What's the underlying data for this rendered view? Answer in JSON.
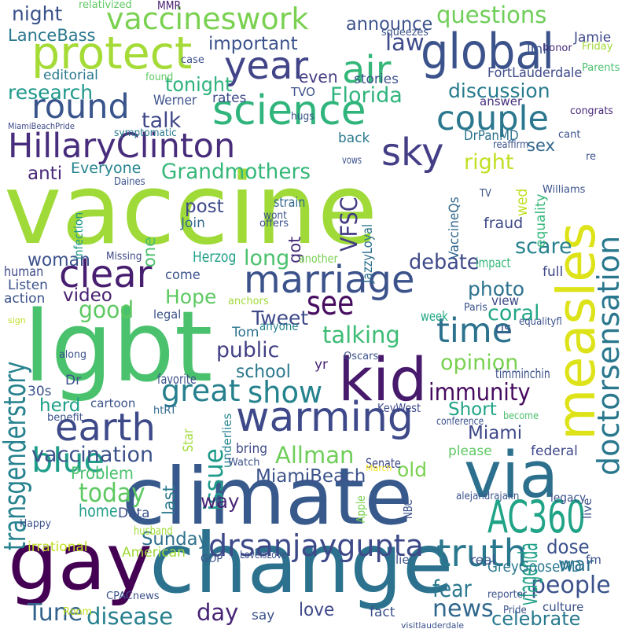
{
  "words": [
    {
      "text": "vaccine",
      "color": "#a0da39"
    },
    {
      "text": "climate",
      "color": "#38598c"
    },
    {
      "text": "lgbt",
      "color": "#4ac16d"
    },
    {
      "text": "change",
      "color": "#2c728e"
    },
    {
      "text": "gay",
      "color": "#440154"
    },
    {
      "text": "measles",
      "color": "#dde318"
    },
    {
      "text": "kid",
      "color": "#481a6c"
    },
    {
      "text": "doctorsensation",
      "color": "#2a788e"
    },
    {
      "text": "via",
      "color": "#2d708e"
    },
    {
      "text": "science",
      "color": "#2fb47c"
    },
    {
      "text": "marriage",
      "color": "#3b528b"
    },
    {
      "text": "warming",
      "color": "#3e4989"
    },
    {
      "text": "global",
      "color": "#3b528b"
    },
    {
      "text": "protect",
      "color": "#a5db36"
    },
    {
      "text": "vaccineswork",
      "color": "#7ad151"
    },
    {
      "text": "HillaryClinton",
      "color": "#472d7b"
    },
    {
      "text": "drsanjaygupta",
      "color": "#3e4a89"
    },
    {
      "text": "AC360",
      "color": "#20a386"
    },
    {
      "text": "truth",
      "color": "#2a788e"
    },
    {
      "text": "year",
      "color": "#414487"
    },
    {
      "text": "air",
      "color": "#35b779"
    },
    {
      "text": "round",
      "color": "#39558c"
    },
    {
      "text": "couple",
      "color": "#2a778e"
    },
    {
      "text": "clear",
      "color": "#481f70"
    },
    {
      "text": "earth",
      "color": "#3e4989"
    },
    {
      "text": "blue",
      "color": "#1f9e89"
    },
    {
      "text": "sky",
      "color": "#433e85"
    },
    {
      "text": "show",
      "color": "#25838e"
    },
    {
      "text": "time",
      "color": "#2c728e"
    },
    {
      "text": "see",
      "color": "#470d60"
    },
    {
      "text": "great",
      "color": "#27808e"
    },
    {
      "text": "today",
      "color": "#5ec962"
    },
    {
      "text": "vaccination",
      "color": "#3b528b"
    },
    {
      "text": "people",
      "color": "#3b528b"
    },
    {
      "text": "transgenderstory",
      "color": "#26828e"
    },
    {
      "text": "Allman",
      "color": "#6ece58"
    },
    {
      "text": "immunity",
      "color": "#460b5e"
    },
    {
      "text": "news",
      "color": "#31688e"
    },
    {
      "text": "disease",
      "color": "#27808e"
    },
    {
      "text": "fear",
      "color": "#2a788e"
    },
    {
      "text": "celebrate",
      "color": "#29798e"
    },
    {
      "text": "Tune",
      "color": "#33638d"
    },
    {
      "text": "day",
      "color": "#482475"
    },
    {
      "text": "vfagenda",
      "color": "#1fa088"
    },
    {
      "text": "issue",
      "color": "#1f9a8a"
    },
    {
      "text": "talking",
      "color": "#3dbc74"
    },
    {
      "text": "opinion",
      "color": "#7ad151"
    },
    {
      "text": "public",
      "color": "#423f85"
    },
    {
      "text": "VFSC",
      "color": "#433d84"
    },
    {
      "text": "good",
      "color": "#5ec962"
    },
    {
      "text": "discussion",
      "color": "#287c8e"
    },
    {
      "text": "questions",
      "color": "#6ece58"
    },
    {
      "text": "law",
      "color": "#3e4a89"
    },
    {
      "text": "Florida",
      "color": "#2fb47c"
    },
    {
      "text": "research",
      "color": "#1f988b"
    },
    {
      "text": "talk",
      "color": "#3f4788"
    },
    {
      "text": "tonight",
      "color": "#2db27d"
    },
    {
      "text": "right",
      "color": "#c2df23"
    },
    {
      "text": "Grandmothers",
      "color": "#35b779"
    },
    {
      "text": "important",
      "color": "#3b528b"
    },
    {
      "text": "LanceBass",
      "color": "#2a788e"
    },
    {
      "text": "night",
      "color": "#3b528b"
    },
    {
      "text": "announce",
      "color": "#3b528b"
    },
    {
      "text": "sex",
      "color": "#31688e"
    },
    {
      "text": "long",
      "color": "#4ac16d"
    },
    {
      "text": "scare",
      "color": "#26828e"
    },
    {
      "text": "debate",
      "color": "#3e4989"
    },
    {
      "text": "photo",
      "color": "#2c728e"
    },
    {
      "text": "coral",
      "color": "#22a785"
    },
    {
      "text": "Hope",
      "color": "#5ec962"
    },
    {
      "text": "Tweet",
      "color": "#3e4a89"
    },
    {
      "text": "school",
      "color": "#2a788e"
    },
    {
      "text": "woman",
      "color": "#3b528b"
    },
    {
      "text": "video",
      "color": "#481f70"
    },
    {
      "text": "post",
      "color": "#3e4a89"
    },
    {
      "text": "one",
      "color": "#4ac16d"
    },
    {
      "text": "got",
      "color": "#472d7b"
    },
    {
      "text": "herd",
      "color": "#1fa088"
    },
    {
      "text": "Short",
      "color": "#20a386"
    },
    {
      "text": "Miami",
      "color": "#3e4989"
    },
    {
      "text": "old",
      "color": "#7ad151"
    },
    {
      "text": "MiamiBeach",
      "color": "#3b528b"
    },
    {
      "text": "Sunday",
      "color": "#2d708e"
    },
    {
      "text": "dose",
      "color": "#3b528b"
    },
    {
      "text": "war",
      "color": "#2d708e"
    },
    {
      "text": "home",
      "color": "#1f9e89"
    },
    {
      "text": "Problem",
      "color": "#4ac16d"
    },
    {
      "text": "way",
      "color": "#482475"
    },
    {
      "text": "last",
      "color": "#29798e"
    },
    {
      "text": "GreyGooseMD",
      "color": "#2a788e"
    },
    {
      "text": "even",
      "color": "#433e85"
    },
    {
      "text": "editorial",
      "color": "#2a788e"
    },
    {
      "text": "stories",
      "color": "#3b528b"
    },
    {
      "text": "FortLauderdale",
      "color": "#3e4989"
    },
    {
      "text": "DrPanMD",
      "color": "#2c728e"
    },
    {
      "text": "Everyone",
      "color": "#25848e"
    },
    {
      "text": "anti",
      "color": "#482878"
    },
    {
      "text": "Werner",
      "color": "#3b528b"
    },
    {
      "text": "rates",
      "color": "#3e4989"
    },
    {
      "text": "TVO",
      "color": "#3b528b"
    },
    {
      "text": "answer",
      "color": "#46307e"
    },
    {
      "text": "MMR",
      "color": "#481f70"
    },
    {
      "text": "relativized",
      "color": "#5ec962"
    },
    {
      "text": "Jamie",
      "color": "#3e4989"
    },
    {
      "text": "link",
      "color": "#3b528b"
    },
    {
      "text": "squeezes",
      "color": "#3b528b"
    },
    {
      "text": "honor",
      "color": "#472d7b"
    },
    {
      "text": "Friday",
      "color": "#a0da39"
    },
    {
      "text": "Parents",
      "color": "#4ac16d"
    },
    {
      "text": "case",
      "color": "#3b528b"
    },
    {
      "text": "found",
      "color": "#5ec962"
    },
    {
      "text": "congrats",
      "color": "#482878"
    },
    {
      "text": "cant",
      "color": "#3b528b"
    },
    {
      "text": "hugs",
      "color": "#3b528b"
    },
    {
      "text": "back",
      "color": "#2a788e"
    },
    {
      "text": "symptomatic",
      "color": "#2a788e"
    },
    {
      "text": "MiamiBeachPride",
      "color": "#3e4989"
    },
    {
      "text": "reaffirm",
      "color": "#3b528b"
    },
    {
      "text": "wed",
      "color": "#c2df23"
    },
    {
      "text": "equality",
      "color": "#35b779"
    },
    {
      "text": "vows",
      "color": "#3b528b"
    },
    {
      "text": "re",
      "color": "#3b528b"
    },
    {
      "text": "Williams",
      "color": "#3b528b"
    },
    {
      "text": "Daines",
      "color": "#3b528b"
    },
    {
      "text": "infection",
      "color": "#1f988b"
    },
    {
      "text": "Join",
      "color": "#31688e"
    },
    {
      "text": "strain",
      "color": "#31688e"
    },
    {
      "text": "wont",
      "color": "#3b528b"
    },
    {
      "text": "offers",
      "color": "#3b528b"
    },
    {
      "text": "JazzyLoyal",
      "color": "#2d708e"
    },
    {
      "text": "VaccineQs",
      "color": "#31688e"
    },
    {
      "text": "fraud",
      "color": "#3e4989"
    },
    {
      "text": "TV",
      "color": "#3b528b"
    },
    {
      "text": "Herzog",
      "color": "#1fa088"
    },
    {
      "text": "Missing",
      "color": "#3e4989"
    },
    {
      "text": "human",
      "color": "#3e4989"
    },
    {
      "text": "come",
      "color": "#3b528b"
    },
    {
      "text": "Listen",
      "color": "#3b528b"
    },
    {
      "text": "action",
      "color": "#3b528b"
    },
    {
      "text": "impact",
      "color": "#35b779"
    },
    {
      "text": "full",
      "color": "#3e4989"
    },
    {
      "text": "view",
      "color": "#3e4989"
    },
    {
      "text": "another",
      "color": "#7ad151"
    },
    {
      "text": "anchors",
      "color": "#a0da39"
    },
    {
      "text": "Tom",
      "color": "#2c728e"
    },
    {
      "text": "legal",
      "color": "#3b528b"
    },
    {
      "text": "sign",
      "color": "#c2df23"
    },
    {
      "text": "anyone",
      "color": "#25848e"
    },
    {
      "text": "week",
      "color": "#22a785"
    },
    {
      "text": "Paris",
      "color": "#3b528b"
    },
    {
      "text": "US",
      "color": "#3b528b"
    },
    {
      "text": "equalityfl",
      "color": "#3b528b"
    },
    {
      "text": "along",
      "color": "#3b528b"
    },
    {
      "text": "Oscars",
      "color": "#3b528b"
    },
    {
      "text": "yr",
      "color": "#482475"
    },
    {
      "text": "timminchin",
      "color": "#3b528b"
    },
    {
      "text": "favorite",
      "color": "#3b528b"
    },
    {
      "text": "Dr",
      "color": "#3b528b"
    },
    {
      "text": "30s",
      "color": "#3b528b"
    },
    {
      "text": "cartoon",
      "color": "#3b528b"
    },
    {
      "text": "benefit",
      "color": "#3b528b"
    },
    {
      "text": "htRT",
      "color": "#31688e"
    },
    {
      "text": "underlies",
      "color": "#25848e"
    },
    {
      "text": "KeyWest",
      "color": "#3e4989"
    },
    {
      "text": "Star",
      "color": "#a0da39"
    },
    {
      "text": "conference",
      "color": "#3b528b"
    },
    {
      "text": "become",
      "color": "#4ac16d"
    },
    {
      "text": "bring",
      "color": "#3e4989"
    },
    {
      "text": "Senate",
      "color": "#3e4989"
    },
    {
      "text": "please",
      "color": "#5ec962"
    },
    {
      "text": "federal",
      "color": "#3e4989"
    },
    {
      "text": "Watch",
      "color": "#3b528b"
    },
    {
      "text": "March",
      "color": "#fde725"
    },
    {
      "text": "Apple",
      "color": "#7ad151"
    },
    {
      "text": "NBC",
      "color": "#3b528b"
    },
    {
      "text": "alejandrajaxn",
      "color": "#3b528b"
    },
    {
      "text": "legacy",
      "color": "#3b528b"
    },
    {
      "text": "Data",
      "color": "#3b528b"
    },
    {
      "text": "Happy",
      "color": "#3b528b"
    },
    {
      "text": "husband",
      "color": "#a0da39"
    },
    {
      "text": "live",
      "color": "#3b528b"
    },
    {
      "text": "fm",
      "color": "#3b528b"
    },
    {
      "text": "irrational",
      "color": "#c2df23"
    },
    {
      "text": "American",
      "color": "#a0da39"
    },
    {
      "text": "LoveIsLove",
      "color": "#3b528b"
    },
    {
      "text": "lie",
      "color": "#3b528b"
    },
    {
      "text": "real",
      "color": "#3b528b"
    },
    {
      "text": "GOP",
      "color": "#3b528b"
    },
    {
      "text": "say",
      "color": "#3b528b"
    },
    {
      "text": "love",
      "color": "#3e4989"
    },
    {
      "text": "fact",
      "color": "#3b528b"
    },
    {
      "text": "CPACnews",
      "color": "#3b528b"
    },
    {
      "text": "Room",
      "color": "#c2df23"
    },
    {
      "text": "reporter",
      "color": "#3b528b"
    },
    {
      "text": "Pride",
      "color": "#3b528b"
    },
    {
      "text": "culture",
      "color": "#3b528b"
    },
    {
      "text": "visitlauderdale",
      "color": "#3b528b"
    }
  ]
}
